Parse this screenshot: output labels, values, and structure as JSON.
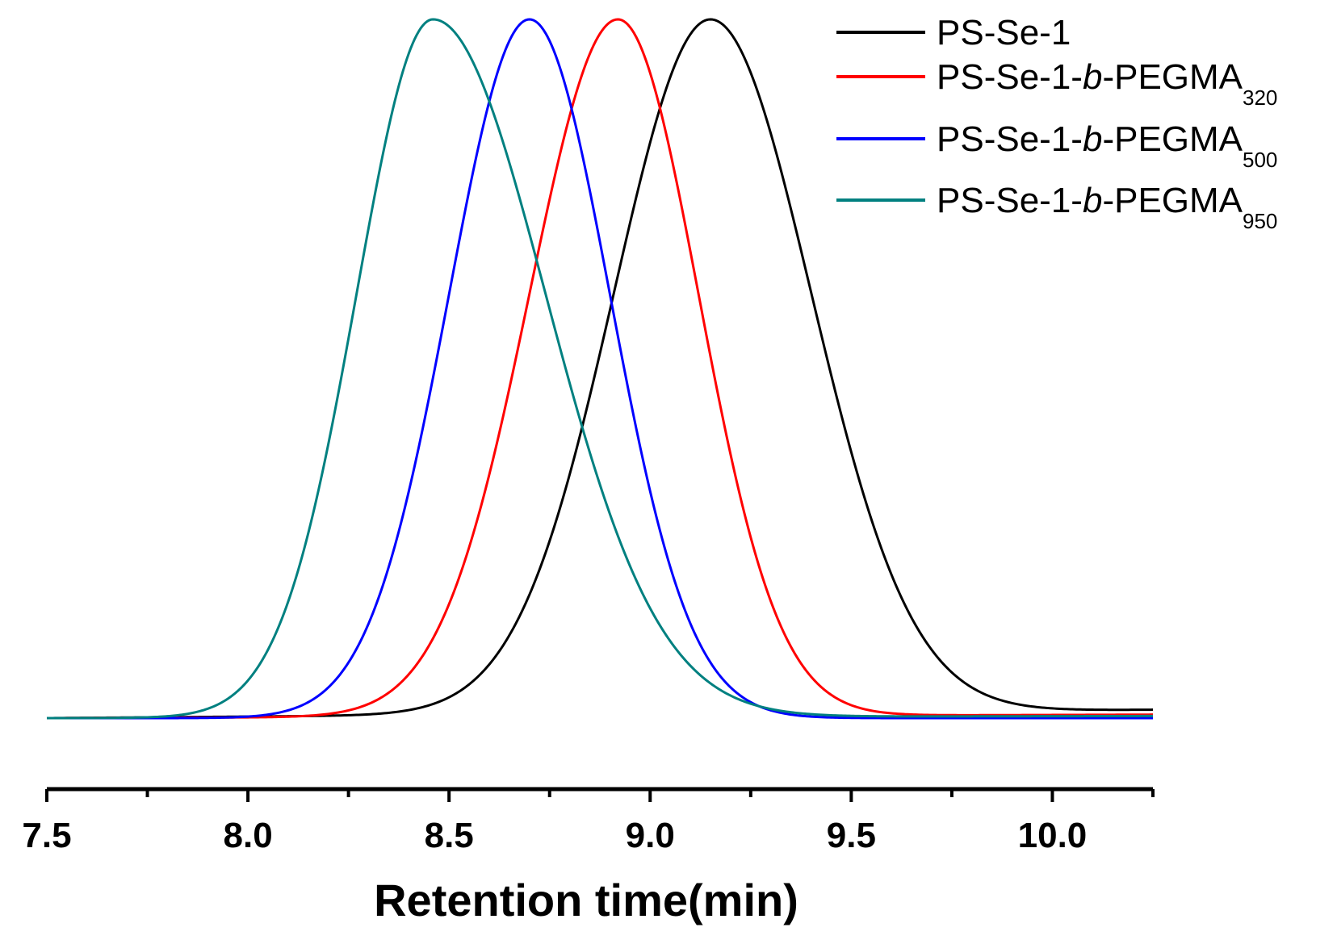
{
  "chart_data": {
    "type": "line",
    "title": "",
    "xlabel": "Retention time(min)",
    "ylabel": "",
    "xlim": [
      7.5,
      10.25
    ],
    "ylim": [
      0,
      1.0
    ],
    "x_ticks": [
      7.5,
      8.0,
      8.5,
      9.0,
      9.5,
      10.0
    ],
    "x_tick_labels": [
      "7.5",
      "8.0",
      "8.5",
      "9.0",
      "9.5",
      "10.0"
    ],
    "y_axis_visible": false,
    "grid": false,
    "legend_position": "top-right",
    "series": [
      {
        "name": "PS-Se-1",
        "legend_parts": {
          "prefix": "PS-Se-1",
          "italic": "",
          "suffix": "",
          "subscript": ""
        },
        "color": "#000000",
        "peak_x": 9.15,
        "peak_y": 1.0,
        "sigma_left": 0.24,
        "sigma_right": 0.25,
        "baseline_end": 0.012
      },
      {
        "name": "PS-Se-1-b-PEGMA320",
        "legend_parts": {
          "prefix": "PS-Se-1-",
          "italic": "b",
          "suffix": "-PEGMA",
          "subscript": "320"
        },
        "color": "#ff0000",
        "peak_x": 8.92,
        "peak_y": 1.0,
        "sigma_left": 0.22,
        "sigma_right": 0.2,
        "baseline_end": 0.005
      },
      {
        "name": "PS-Se-1-b-PEGMA500",
        "legend_parts": {
          "prefix": "PS-Se-1-",
          "italic": "b",
          "suffix": "-PEGMA",
          "subscript": "500"
        },
        "color": "#0000ff",
        "peak_x": 8.7,
        "peak_y": 1.0,
        "sigma_left": 0.2,
        "sigma_right": 0.2,
        "baseline_end": 0.0
      },
      {
        "name": "PS-Se-1-b-PEGMA950",
        "legend_parts": {
          "prefix": "PS-Se-1-",
          "italic": "b",
          "suffix": "-PEGMA",
          "subscript": "950"
        },
        "color": "#008080",
        "peak_x": 8.46,
        "peak_y": 1.0,
        "sigma_left": 0.19,
        "sigma_right": 0.28,
        "baseline_end": 0.003
      }
    ]
  }
}
